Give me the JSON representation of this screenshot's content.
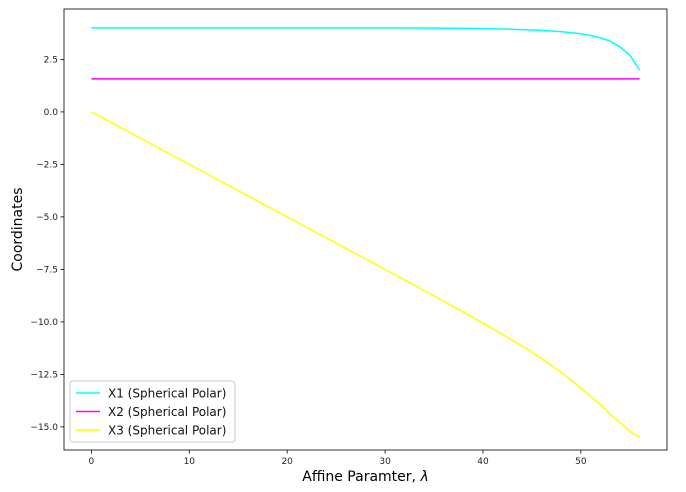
{
  "chart_data": {
    "type": "line",
    "title": "",
    "xlabel": "Affine Paramter, ",
    "xlabel_symbol": "λ",
    "ylabel": "Coordinates",
    "xlim": [
      -2.8,
      58.8
    ],
    "ylim": [
      -16.1,
      4.9
    ],
    "xticks": [
      0,
      10,
      20,
      30,
      40,
      50
    ],
    "xtick_labels": [
      "0",
      "10",
      "20",
      "30",
      "40",
      "50"
    ],
    "yticks": [
      2.5,
      0.0,
      -2.5,
      -5.0,
      -7.5,
      -10.0,
      -12.5,
      -15.0
    ],
    "ytick_labels": [
      "2.5",
      "0.0",
      "−2.5",
      "−5.0",
      "−7.5",
      "−10.0",
      "−12.5",
      "−15.0"
    ],
    "grid": false,
    "legend_position": "lower-left",
    "x": [
      0,
      5,
      10,
      15,
      20,
      25,
      30,
      35,
      40,
      42,
      44,
      46,
      48,
      50,
      51,
      52,
      53,
      54,
      55,
      56
    ],
    "series": [
      {
        "name": "X1 (Spherical Polar)",
        "color": "#00ffff",
        "values": [
          4.0,
          4.0,
          4.0,
          4.0,
          4.0,
          4.0,
          4.0,
          3.99,
          3.97,
          3.95,
          3.92,
          3.88,
          3.82,
          3.72,
          3.64,
          3.53,
          3.37,
          3.1,
          2.7,
          2.0
        ]
      },
      {
        "name": "X2 (Spherical Polar)",
        "color": "#ff00ff",
        "values": [
          1.571,
          1.571,
          1.571,
          1.571,
          1.571,
          1.571,
          1.571,
          1.571,
          1.571,
          1.571,
          1.571,
          1.571,
          1.571,
          1.571,
          1.571,
          1.571,
          1.571,
          1.571,
          1.571,
          1.571
        ]
      },
      {
        "name": "X3 (Spherical Polar)",
        "color": "#ffff00",
        "values": [
          0.0,
          -1.25,
          -2.5,
          -3.75,
          -5.0,
          -6.25,
          -7.5,
          -8.76,
          -10.05,
          -10.6,
          -11.15,
          -11.75,
          -12.4,
          -13.15,
          -13.55,
          -13.95,
          -14.4,
          -14.8,
          -15.2,
          -15.5
        ]
      }
    ]
  }
}
